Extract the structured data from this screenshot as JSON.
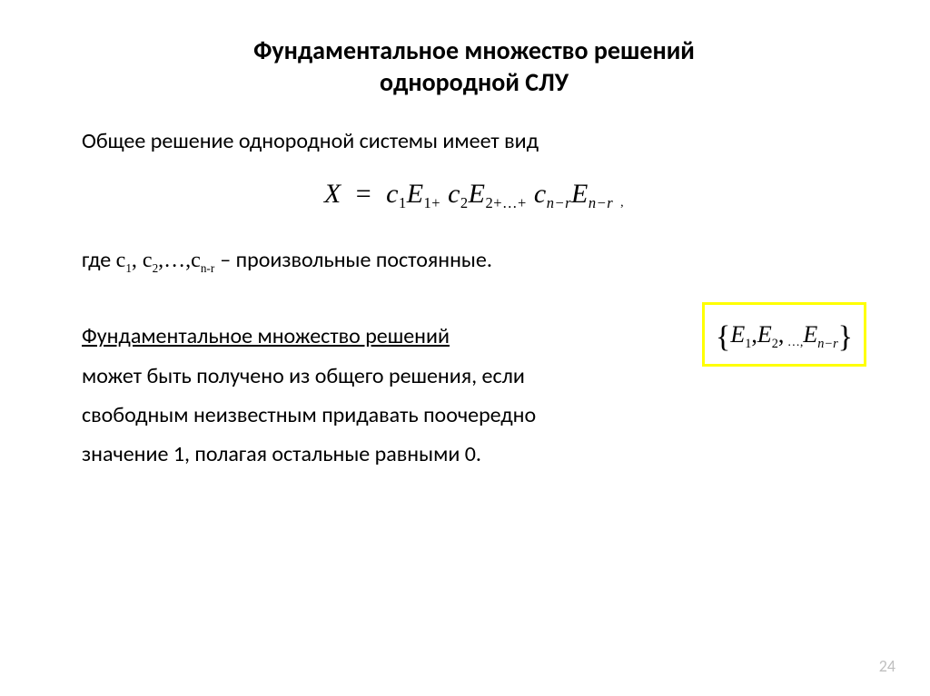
{
  "title_line1": "Фундаментальное множество решений",
  "title_line2": "однородной СЛУ",
  "intro": "Общее решение однородной системы имеет вид",
  "formula": {
    "X": "X",
    "eq": "=",
    "c": "c",
    "E": "E",
    "plus": "+",
    "ellipsis": "+…+",
    "nr": "n−r",
    "sub1": "1",
    "sub2": "2",
    "comma": ","
  },
  "where_prefix": "где   ",
  "where_constants": "с₁, с₂,…,сₙ₋ᵣ",
  "where_c1": "с",
  "where_sub1": "1",
  "where_sub2": "2",
  "where_subnr": "n-r",
  "where_suffix": "  – произвольные постоянные.",
  "fss_label": "Фундаментальное множество решений",
  "fss_set_E": "E",
  "fss_sub1": "1",
  "fss_sub2": "2",
  "fss_subnr": "n−r",
  "rest_line1": "может быть получено  из общего решения, если",
  "rest_line2": "свободным неизвестным придавать поочередно",
  "rest_line3": "значение 1, полагая остальные равными 0.",
  "page_number": "24",
  "colors": {
    "highlight_border": "#ffff00",
    "page_num": "#bfbfbf",
    "text": "#000000",
    "background": "#ffffff"
  }
}
